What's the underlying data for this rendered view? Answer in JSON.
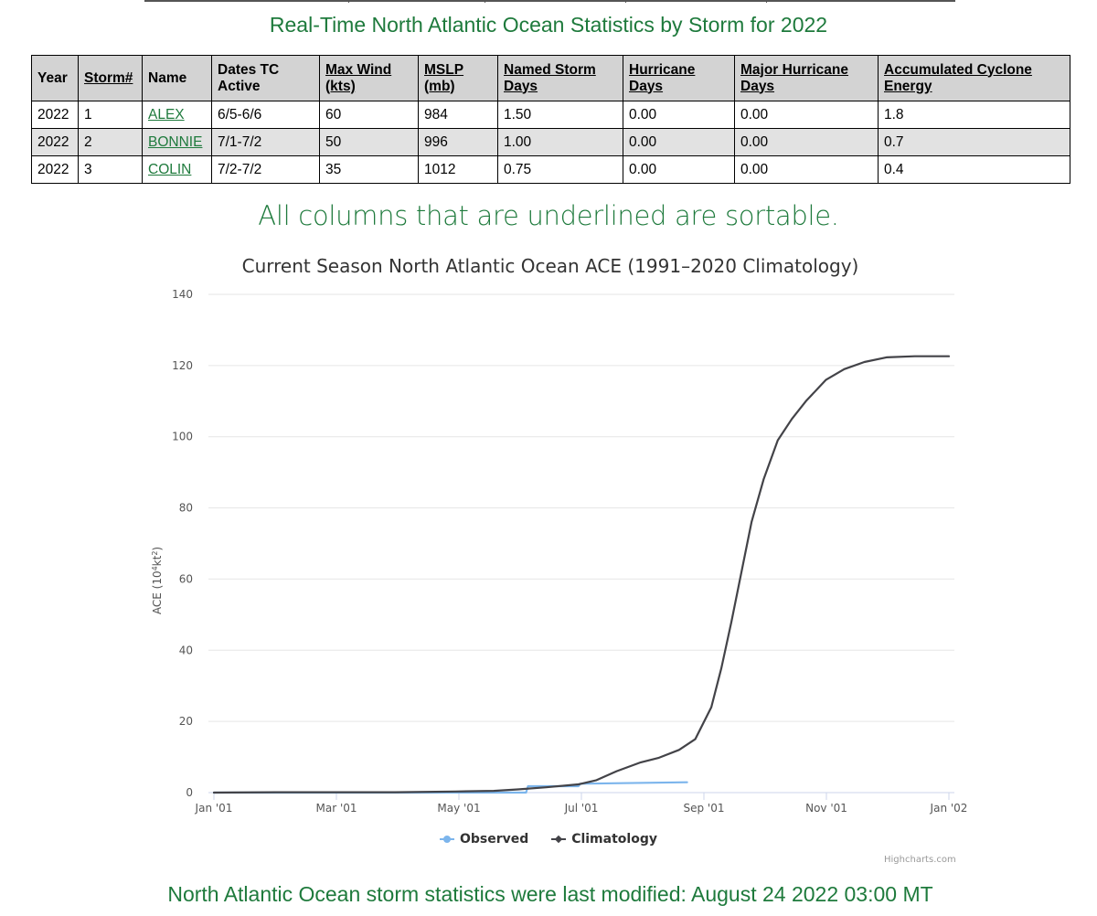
{
  "page": {
    "title": "Real-Time North Atlantic Ocean Statistics by Storm for 2022",
    "sort_note": "All columns that are underlined are sortable.",
    "modified": "North Atlantic Ocean storm statistics were last modified: August 24 2022 03:00 MT"
  },
  "table": {
    "headers": [
      {
        "label": "Year",
        "sortable": false
      },
      {
        "label": "Storm#",
        "sortable": true
      },
      {
        "label": "Name",
        "sortable": false
      },
      {
        "label": "Dates TC Active",
        "sortable": false
      },
      {
        "label": "Max Wind (kts)",
        "sortable": true
      },
      {
        "label": "MSLP (mb)",
        "sortable": true
      },
      {
        "label": "Named Storm Days",
        "sortable": true
      },
      {
        "label": "Hurricane Days",
        "sortable": true
      },
      {
        "label": "Major Hurricane Days",
        "sortable": true
      },
      {
        "label": "Accumulated Cyclone Energy",
        "sortable": true
      }
    ],
    "rows": [
      {
        "year": "2022",
        "storm": "1",
        "name": "ALEX",
        "dates": "6/5-6/6",
        "wind": "60",
        "mslp": "984",
        "ns_days": "1.50",
        "h_days": "0.00",
        "mh_days": "0.00",
        "ace": "1.8"
      },
      {
        "year": "2022",
        "storm": "2",
        "name": "BONNIE",
        "dates": "7/1-7/2",
        "wind": "50",
        "mslp": "996",
        "ns_days": "1.00",
        "h_days": "0.00",
        "mh_days": "0.00",
        "ace": "0.7"
      },
      {
        "year": "2022",
        "storm": "3",
        "name": "COLIN",
        "dates": "7/2-7/2",
        "wind": "35",
        "mslp": "1012",
        "ns_days": "0.75",
        "h_days": "0.00",
        "mh_days": "0.00",
        "ace": "0.4"
      }
    ]
  },
  "chart_data": {
    "type": "line",
    "title": "Current Season North Atlantic Ocean ACE (1991–2020 Climatology)",
    "ylabel_main": "ACE (10",
    "ylabel_sup1": "4",
    "ylabel_mid": "kt",
    "ylabel_sup2": "2",
    "ylabel_end": ")",
    "xlabel": "",
    "ylim": [
      0,
      140
    ],
    "xlim": [
      "2001-01-01",
      "2002-01-01"
    ],
    "x_ticks": [
      "Jan '01",
      "Mar '01",
      "May '01",
      "Jul '01",
      "Sep '01",
      "Nov '01",
      "Jan '02"
    ],
    "y_ticks": [
      "0",
      "20",
      "40",
      "60",
      "80",
      "100",
      "120",
      "140"
    ],
    "grid": true,
    "legend": "bottom-center",
    "credits": "Highcharts.com",
    "series": [
      {
        "name": "Observed",
        "color": "#7cb5ec",
        "points": [
          [
            "2001-01-01",
            0
          ],
          [
            "2001-06-05",
            0
          ],
          [
            "2001-06-06",
            1.8
          ],
          [
            "2001-07-01",
            1.8
          ],
          [
            "2001-07-02",
            2.5
          ],
          [
            "2001-08-24",
            2.9
          ]
        ]
      },
      {
        "name": "Climatology",
        "color": "#434348",
        "points": [
          [
            "2001-01-01",
            0
          ],
          [
            "2001-02-01",
            0.1
          ],
          [
            "2001-03-01",
            0.1
          ],
          [
            "2001-04-01",
            0.1
          ],
          [
            "2001-05-01",
            0.3
          ],
          [
            "2001-05-20",
            0.5
          ],
          [
            "2001-06-01",
            0.9
          ],
          [
            "2001-06-15",
            1.5
          ],
          [
            "2001-07-01",
            2.3
          ],
          [
            "2001-07-10",
            3.5
          ],
          [
            "2001-07-20",
            6.0
          ],
          [
            "2001-08-01",
            8.5
          ],
          [
            "2001-08-10",
            9.8
          ],
          [
            "2001-08-20",
            12.0
          ],
          [
            "2001-08-28",
            15.0
          ],
          [
            "2001-09-05",
            24.0
          ],
          [
            "2001-09-10",
            35.0
          ],
          [
            "2001-09-15",
            48.0
          ],
          [
            "2001-09-20",
            62.0
          ],
          [
            "2001-09-25",
            76.0
          ],
          [
            "2001-10-01",
            88.0
          ],
          [
            "2001-10-08",
            99.0
          ],
          [
            "2001-10-15",
            105.0
          ],
          [
            "2001-10-22",
            110.0
          ],
          [
            "2001-11-01",
            116.0
          ],
          [
            "2001-11-10",
            119.0
          ],
          [
            "2001-11-20",
            121.0
          ],
          [
            "2001-12-01",
            122.3
          ],
          [
            "2001-12-15",
            122.6
          ],
          [
            "2002-01-01",
            122.6
          ]
        ]
      }
    ]
  }
}
